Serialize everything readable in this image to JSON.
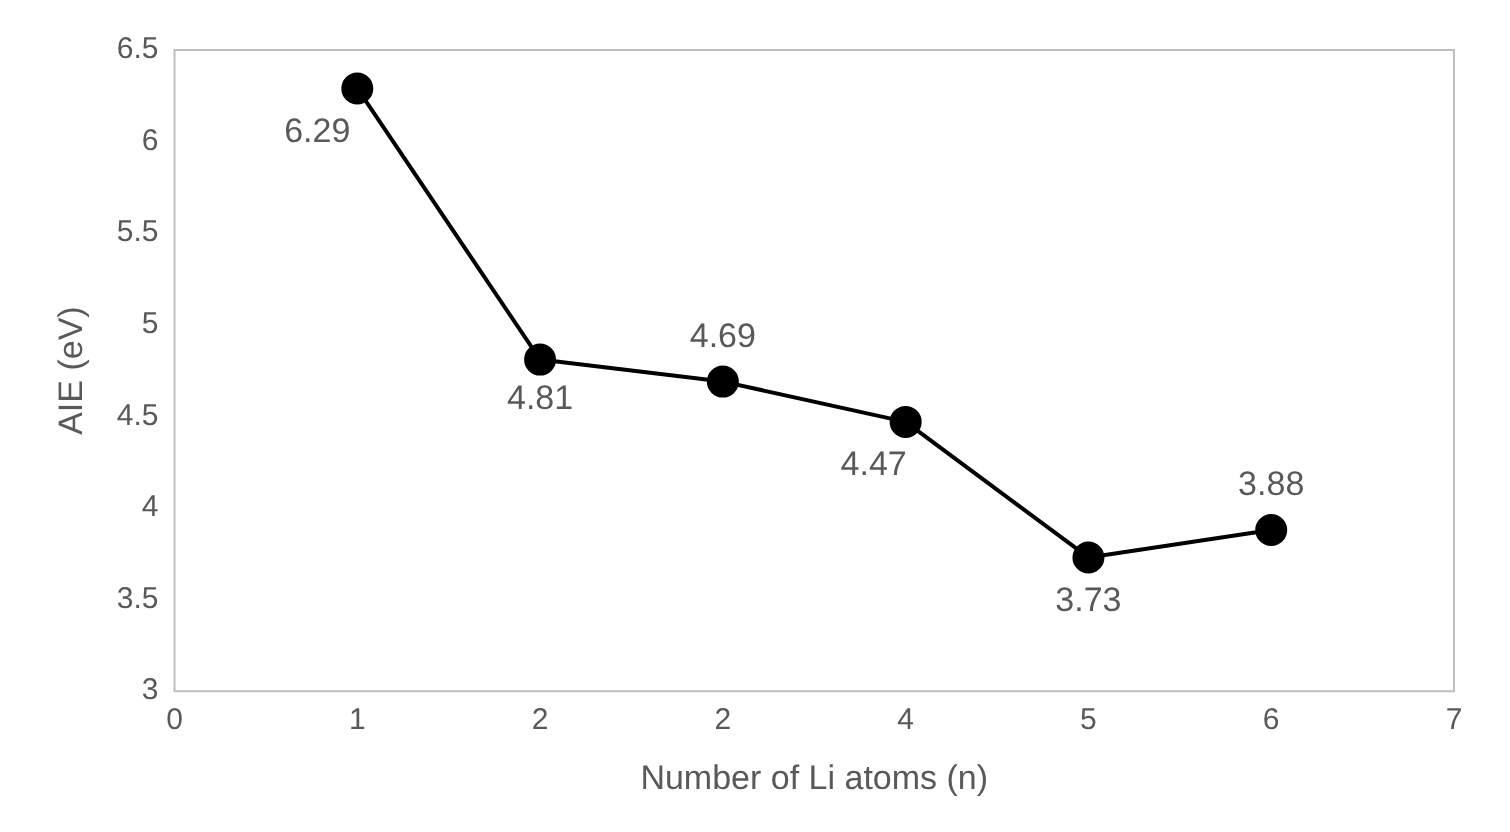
{
  "chart_data": {
    "type": "line",
    "xlabel": "Number of Li atoms (n)",
    "ylabel": "AIE (eV)",
    "categories": [
      "0",
      "1",
      "2",
      "2",
      "4",
      "5",
      "6",
      "7"
    ],
    "series": [
      {
        "color": "#000000",
        "values": [
          null,
          6.29,
          4.81,
          4.69,
          4.47,
          3.73,
          3.88,
          null
        ]
      }
    ],
    "ylim": [
      3,
      6.5
    ],
    "yticks": [
      3,
      3.5,
      4,
      4.5,
      5,
      5.5,
      6,
      6.5
    ],
    "grid": false,
    "legend": false,
    "marker": "circle",
    "line_style": "solid",
    "data_labels": true
  }
}
